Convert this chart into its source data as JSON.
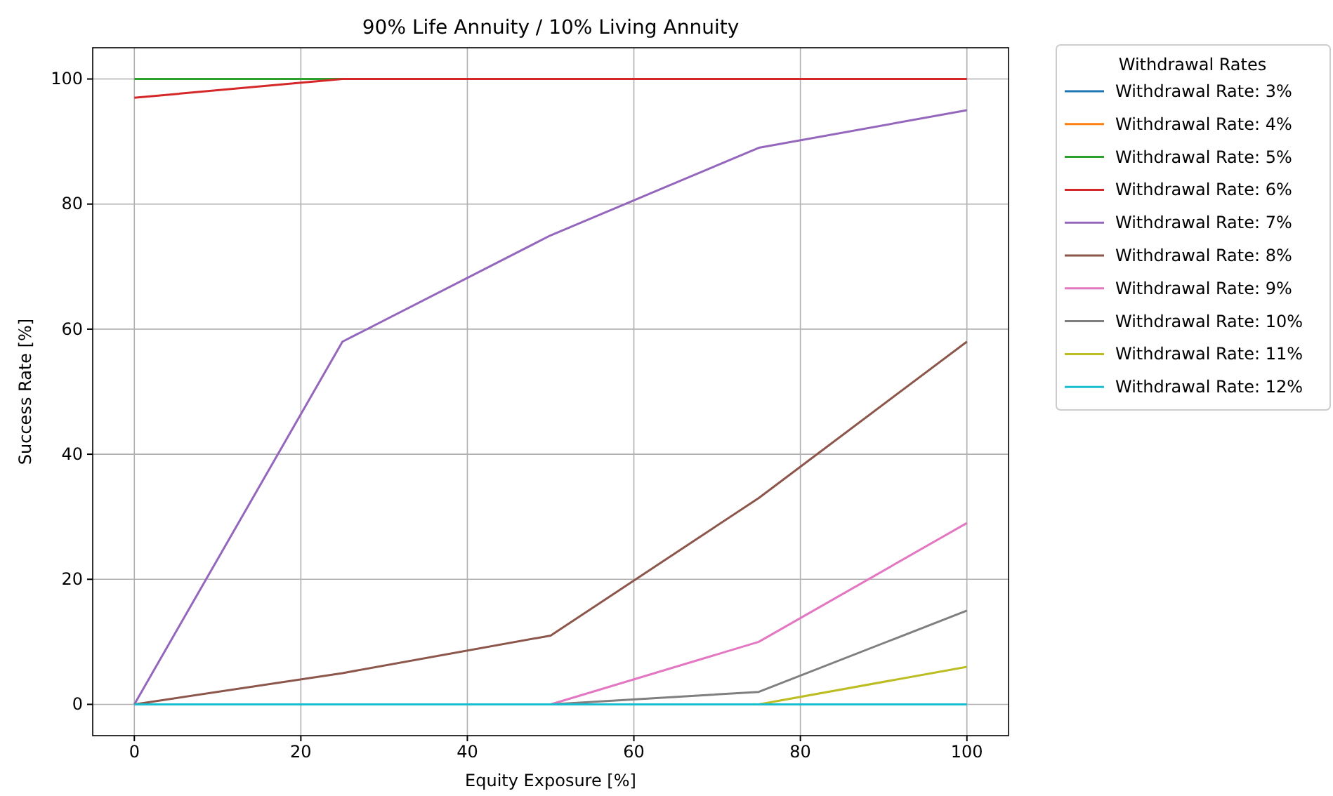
{
  "chart_data": {
    "type": "line",
    "title": "90% Life Annuity / 10% Living Annuity",
    "xlabel": "Equity Exposure [%]",
    "ylabel": "Success Rate [%]",
    "legend_title": "Withdrawal Rates",
    "legend": "top right",
    "grid": true,
    "x": [
      0,
      25,
      50,
      75,
      100
    ],
    "xlim": [
      -5,
      105
    ],
    "xticks": [
      0,
      20,
      40,
      60,
      80,
      100
    ],
    "ylim": [
      -5,
      105
    ],
    "yticks": [
      0,
      20,
      40,
      60,
      80,
      100
    ],
    "series": [
      {
        "name": "Withdrawal Rate: 3%",
        "color": "#1f77b4",
        "values": [
          null,
          null,
          null,
          null,
          null
        ]
      },
      {
        "name": "Withdrawal Rate: 4%",
        "color": "#ff7f0e",
        "values": [
          null,
          null,
          null,
          null,
          null
        ]
      },
      {
        "name": "Withdrawal Rate: 5%",
        "color": "#2ca02c",
        "values": [
          100,
          100,
          null,
          null,
          null
        ]
      },
      {
        "name": "Withdrawal Rate: 6%",
        "color": "#d62728",
        "values": [
          97,
          100,
          100,
          100,
          100
        ]
      },
      {
        "name": "Withdrawal Rate: 7%",
        "color": "#9467bd",
        "values": [
          0,
          58,
          75,
          89,
          95
        ]
      },
      {
        "name": "Withdrawal Rate: 8%",
        "color": "#8c564b",
        "values": [
          0,
          5,
          11,
          33,
          58
        ]
      },
      {
        "name": "Withdrawal Rate: 9%",
        "color": "#e377c2",
        "values": [
          null,
          null,
          0,
          10,
          29
        ]
      },
      {
        "name": "Withdrawal Rate: 10%",
        "color": "#7f7f7f",
        "values": [
          null,
          null,
          0,
          2,
          15
        ]
      },
      {
        "name": "Withdrawal Rate: 11%",
        "color": "#bcbd22",
        "values": [
          null,
          null,
          null,
          0,
          6
        ]
      },
      {
        "name": "Withdrawal Rate: 12%",
        "color": "#17becf",
        "values": [
          0,
          0,
          0,
          0,
          0
        ]
      }
    ]
  }
}
